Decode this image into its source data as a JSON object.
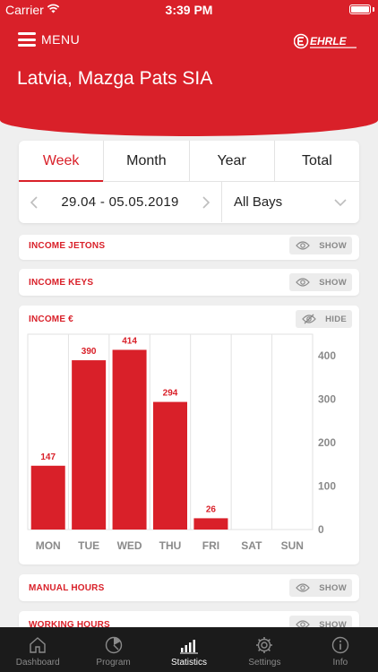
{
  "status_bar": {
    "carrier": "Carrier",
    "time": "3:39 PM"
  },
  "header": {
    "menu_label": "MENU",
    "title": "Latvia, Mazga Pats SIA",
    "accent_color": "#d92029"
  },
  "period_tabs": [
    {
      "label": "Week",
      "active": true
    },
    {
      "label": "Month",
      "active": false
    },
    {
      "label": "Year",
      "active": false
    },
    {
      "label": "Total",
      "active": false
    }
  ],
  "date_range": {
    "text": "29.04 - 05.05.2019"
  },
  "bays_select": {
    "value": "All Bays"
  },
  "sections": {
    "income_jetons": {
      "title": "INCOME JETONS",
      "toggle": "SHOW"
    },
    "income_keys": {
      "title": "INCOME KEYS",
      "toggle": "SHOW"
    },
    "income_eur": {
      "title": "INCOME €",
      "toggle": "HIDE"
    },
    "manual_hours": {
      "title": "MANUAL HOURS",
      "toggle": "SHOW"
    },
    "working_hours": {
      "title": "WORKING HOURS",
      "toggle": "SHOW"
    }
  },
  "chart_data": {
    "type": "bar",
    "categories": [
      "MON",
      "TUE",
      "WED",
      "THU",
      "FRI",
      "SAT",
      "SUN"
    ],
    "values": [
      147,
      390,
      414,
      294,
      26,
      null,
      null
    ],
    "value_labels": [
      "147",
      "390",
      "414",
      "294",
      "26",
      "",
      ""
    ],
    "y_ticks": [
      "0",
      "100",
      "200",
      "300",
      "400"
    ],
    "ylim": [
      0,
      450
    ],
    "bar_color": "#d92029",
    "grid": true,
    "y_axis_side": "right"
  },
  "tabbar": [
    {
      "label": "Dashboard",
      "icon": "home-icon",
      "active": false
    },
    {
      "label": "Program",
      "icon": "program-dial-icon",
      "active": false
    },
    {
      "label": "Statistics",
      "icon": "bar-chart-icon",
      "active": true
    },
    {
      "label": "Settings",
      "icon": "gear-icon",
      "active": false
    },
    {
      "label": "Info",
      "icon": "info-icon",
      "active": false
    }
  ]
}
